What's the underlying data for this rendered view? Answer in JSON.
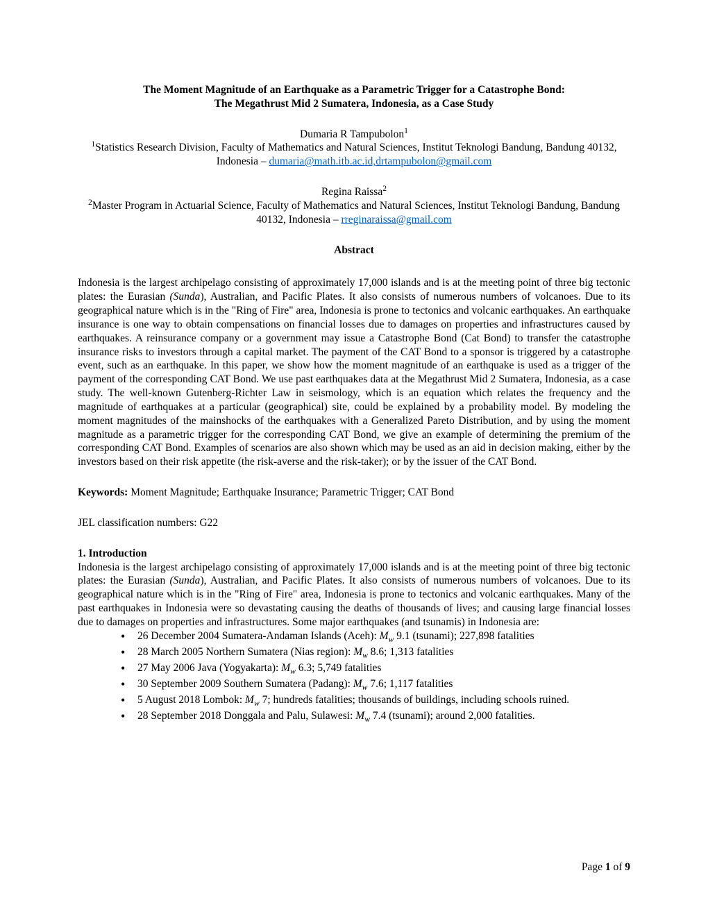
{
  "title_line1": "The Moment Magnitude of an Earthquake as a Parametric Trigger for a Catastrophe Bond:",
  "title_line2": "The Megathrust Mid 2 Sumatera, Indonesia, as a Case Study",
  "author1": {
    "name": "Dumaria R Tampubolon",
    "sup": "1",
    "affil_prefix_sup": "1",
    "affil_text": "Statistics Research Division, Faculty of Mathematics and Natural Sciences, Institut Teknologi Bandung, Bandung 40132, Indonesia – ",
    "email": "dumaria@math.itb.ac.id,drtampubolon@gmail.com"
  },
  "author2": {
    "name": "Regina Raissa",
    "sup": "2",
    "affil_prefix_sup": "2",
    "affil_text": "Master Program in Actuarial Science, Faculty of Mathematics and Natural Sciences, Institut Teknologi Bandung, Bandung 40132, Indonesia – ",
    "email": "rreginaraissa@gmail.com"
  },
  "abstract_heading": "Abstract",
  "abstract_p1a": "Indonesia is the largest archipelago consisting of approximately 17,000 islands and is at the meeting point of three big tectonic plates: the Eurasian ",
  "abstract_p1b_italic": "(Sunda",
  "abstract_p1c": "), Australian, and Pacific Plates. It also consists of numerous numbers of volcanoes. Due to its geographical nature which is in the \"Ring of Fire\" area, Indonesia is prone to tectonics and volcanic earthquakes. An earthquake insurance is one way to obtain compensations on financial losses due to damages on properties and infrastructures caused by earthquakes. A reinsurance company or a government may issue a Catastrophe Bond (Cat Bond) to transfer the catastrophe insurance risks to investors through a capital market. The payment of the CAT Bond to a sponsor is triggered by a catastrophe event, such as an earthquake. In this paper, we show how the moment magnitude of an earthquake is used as a trigger of the payment of the corresponding CAT Bond. We use past earthquakes data at the Megathrust Mid 2 Sumatera, Indonesia, as a case study. The well-known Gutenberg-Richter Law in seismology, which is an equation which relates the frequency and the magnitude of earthquakes at a particular (geographical) site, could be explained by a probability model. By modeling the moment magnitudes of the mainshocks of the earthquakes with a Generalized Pareto Distribution, and by using the moment magnitude as a parametric trigger for the corresponding CAT Bond, we give an example of determining the premium of the corresponding CAT Bond. Examples of scenarios are also shown which may be used as an aid in decision making, either by the investors based on their risk appetite (the risk-averse and the risk-taker); or by the issuer of the CAT Bond.",
  "keywords_label": "Keywords: ",
  "keywords_text": "Moment Magnitude; Earthquake Insurance; Parametric Trigger; CAT Bond",
  "jel_text": "JEL classification numbers: G22",
  "section1_heading": "1. Introduction",
  "intro_p1a": "Indonesia is the largest archipelago consisting of approximately 17,000 islands and is at the meeting point of three big tectonic plates: the Eurasian ",
  "intro_p1b_italic": "(Sunda",
  "intro_p1c": "), Australian, and Pacific Plates. It also consists of numerous numbers of volcanoes. Due to its geographical nature which is in the \"Ring of Fire\" area, Indonesia is prone to tectonics and volcanic earthquakes. Many of the past earthquakes in Indonesia were so devastating causing the deaths of thousands of lives; and causing large financial losses due to damages on properties and infrastructures. Some major earthquakes (and tsunamis) in Indonesia are:",
  "bullet1_a": "26 December 2004 Sumatera-Andaman Islands (Aceh):  ",
  "bullet1_b": " 9.1 (tsunami); 227,898 fatalities",
  "bullet2_a": "28 March 2005 Northern Sumatera (Nias region): ",
  "bullet2_b": " 8.6; 1,313 fatalities",
  "bullet3_a": "27 May 2006 Java (Yogyakarta): ",
  "bullet3_b": " 6.3; 5,749 fatalities",
  "bullet4_a": "30 September 2009 Southern Sumatera (Padang): ",
  "bullet4_b": " 7.6; 1,117 fatalities",
  "bullet5_a": "5 August 2018 Lombok: ",
  "bullet5_b": " 7; hundreds fatalities; thousands of buildings, including schools ruined.",
  "bullet6_a": "28 September 2018 Donggala and Palu, Sulawesi: ",
  "bullet6_b": " 7.4 (tsunami); around 2,000 fatalities.",
  "mw_symbol": "M",
  "mw_sub": "w",
  "footer_page": "Page ",
  "footer_num": "1",
  "footer_of": " of ",
  "footer_total": "9",
  "colors": {
    "link": "#0563c1",
    "text": "#000000",
    "background": "#ffffff"
  }
}
